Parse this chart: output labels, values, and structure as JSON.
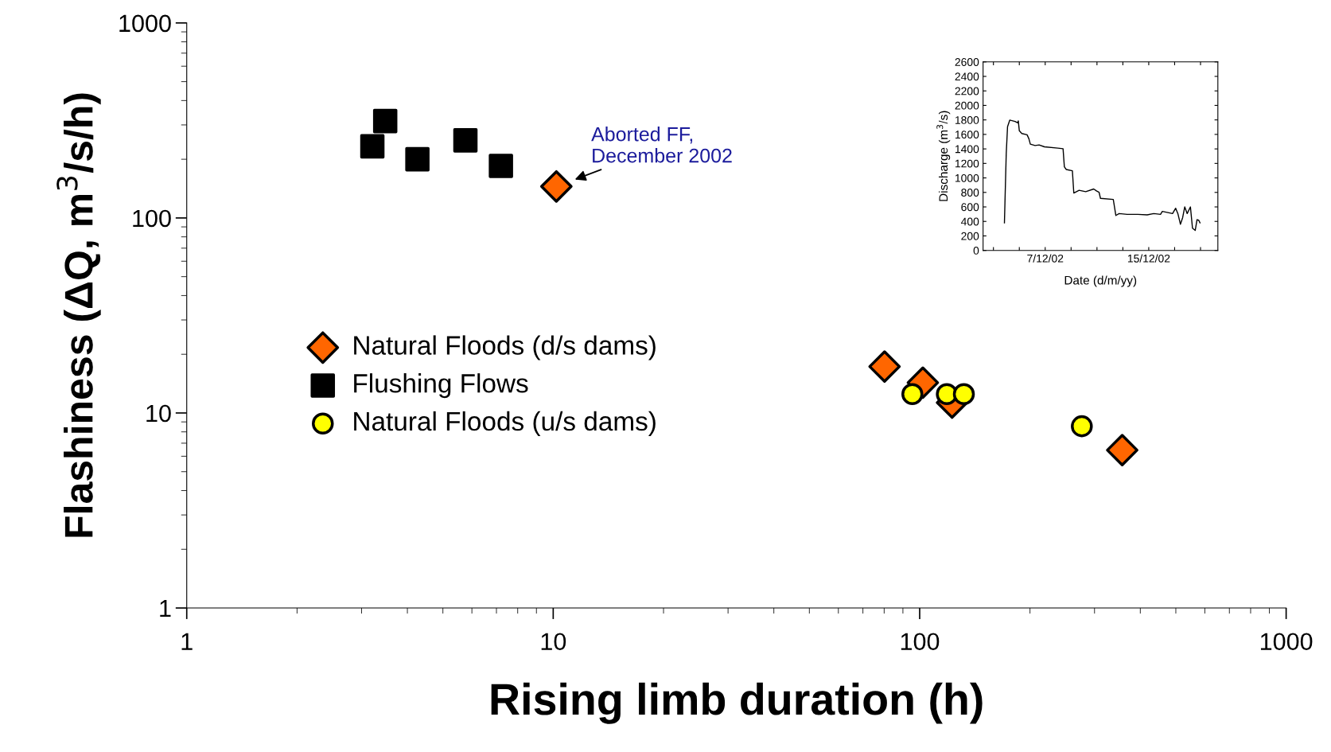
{
  "chart_data": [
    {
      "type": "scatter",
      "xlabel": "Rising limb duration (h)",
      "ylabel": "Flashiness (ΔQ, m$^{3}$/s/h)",
      "log": "xy",
      "xlim": [
        1,
        1000
      ],
      "ylim": [
        1,
        1000
      ],
      "xticks": [
        1,
        10,
        100,
        1000
      ],
      "yticks": [
        1,
        10,
        100,
        1000
      ],
      "grid": false,
      "legend": "left",
      "series": [
        {
          "name": "Natural Floods (d/s dams)",
          "color": "#ff6600",
          "marker": "diamond",
          "x": [
            10.2,
            80.2,
            102,
            122.6,
            357
          ],
          "values": [
            145,
            17.3,
            14.3,
            11.3,
            6.45
          ]
        },
        {
          "name": "Flushing Flows",
          "color": "#000000",
          "marker": "square",
          "x": [
            3.21,
            3.48,
            4.26,
            5.76,
            7.2
          ],
          "values": [
            233,
            314,
            200,
            250,
            185
          ]
        },
        {
          "name": "Natural Floods (u/s dams)",
          "color": "#ffff00",
          "marker": "circle",
          "x": [
            95.5,
            118.6,
            132,
            277
          ],
          "values": [
            12.5,
            12.5,
            12.5,
            8.55
          ]
        }
      ],
      "annotations": [
        {
          "text": "Aborted FF,\nDecember 2002",
          "x": 10.2,
          "y": 145
        }
      ]
    },
    {
      "type": "line",
      "xlabel": "Date (d/m/yy)",
      "ylabel": "Discharge (m$^{3}$/s)",
      "xlim": [
        "2002-12-02T04:48",
        "2002-12-20T08:10"
      ],
      "ylim": [
        0,
        2600
      ],
      "grid": false,
      "marker": "none",
      "line_style": "solid",
      "xticks": [
        {
          "value": "2002-12-03",
          "label": null
        },
        {
          "value": "2002-12-05",
          "label": null
        },
        {
          "value": "2002-12-07",
          "label": "7/12/02"
        },
        {
          "value": "2002-12-09",
          "label": null
        },
        {
          "value": "2002-12-11",
          "label": null
        },
        {
          "value": "2002-12-13",
          "label": null
        },
        {
          "value": "2002-12-15",
          "label": "15/12/02"
        },
        {
          "value": "2002-12-17",
          "label": null
        },
        {
          "value": "2002-12-19",
          "label": null
        }
      ],
      "yticks": [
        0,
        200,
        400,
        600,
        800,
        1000,
        1200,
        1400,
        1600,
        1800,
        2000,
        2200,
        2400,
        2600
      ],
      "series": [
        {
          "color": "#000000",
          "x": [
            "2002-12-03T20:24",
            "2002-12-03T23:45",
            "2002-12-04T02:10",
            "2002-12-04T06:15",
            "2002-12-04T16:05",
            "2002-12-04T21:07",
            "2002-12-04T22:05",
            "2002-12-05T00:00",
            "2002-12-05T04:34",
            "2002-12-05T14:24",
            "2002-12-05T17:46",
            "2002-12-05T20:24",
            "2002-12-06T05:17",
            "2002-12-06T12:43",
            "2002-12-06T22:34",
            "2002-12-07T23:17",
            "2002-12-08T09:07",
            "2002-12-08T11:31",
            "2002-12-08T15:07",
            "2002-12-09T02:24",
            "2002-12-09T05:02",
            "2002-12-09T14:53",
            "2002-12-10T03:07",
            "2002-12-10T18:00",
            "2002-12-10T23:02",
            "2002-12-11T03:50",
            "2002-12-11T06:29",
            "2002-12-12T06:14",
            "2002-12-12T11:02",
            "2002-12-12T17:02",
            "2002-12-13T07:55",
            "2002-12-14T03:36",
            "2002-12-14T21:07",
            "2002-12-15T09:22",
            "2002-12-15T21:50",
            "2002-12-16T01:12",
            "2002-12-16T20:10",
            "2002-12-17T01:55",
            "2002-12-17T06:00",
            "2002-12-17T10:48",
            "2002-12-17T14:53",
            "2002-12-17T18:43",
            "2002-12-17T23:17",
            "2002-12-18T05:17",
            "2002-12-18T09:07",
            "2002-12-18T14:10",
            "2002-12-18T17:31",
            "2002-12-18T20:38",
            "2002-12-18T23:02"
          ],
          "values": [
            380,
            1337,
            1705,
            1797,
            1779,
            1760,
            1786,
            1650,
            1613,
            1595,
            1540,
            1466,
            1447,
            1455,
            1429,
            1411,
            1403,
            1153,
            1116,
            1098,
            792,
            829,
            810,
            847,
            821,
            803,
            718,
            703,
            482,
            508,
            497,
            497,
            490,
            508,
            497,
            538,
            508,
            582,
            508,
            361,
            453,
            600,
            508,
            600,
            306,
            276,
            424,
            416,
            380
          ]
        }
      ]
    }
  ]
}
